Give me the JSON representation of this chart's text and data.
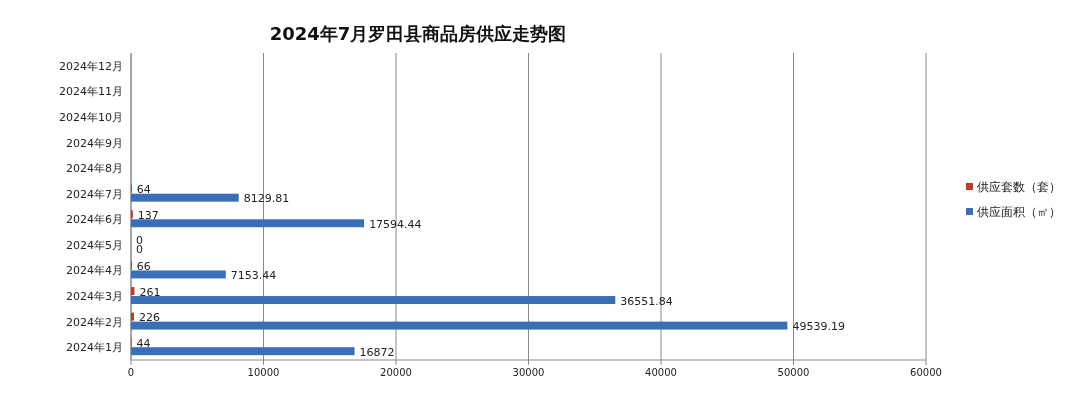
{
  "chart_data": {
    "type": "bar",
    "orientation": "horizontal",
    "title": "2024年7月罗田县商品房供应走势图",
    "categories": [
      "2024年12月",
      "2024年11月",
      "2024年10月",
      "2024年9月",
      "2024年8月",
      "2024年7月",
      "2024年6月",
      "2024年5月",
      "2024年4月",
      "2024年3月",
      "2024年2月",
      "2024年1月"
    ],
    "series": [
      {
        "name": "供应套数（套）",
        "color": "#c0392b",
        "values": [
          null,
          null,
          null,
          null,
          null,
          64,
          137,
          0,
          66,
          261,
          226,
          44
        ]
      },
      {
        "name": "供应面积（㎡）",
        "color": "#3a6fb8",
        "values": [
          null,
          null,
          null,
          null,
          null,
          8129.81,
          17594.44,
          0,
          7153.44,
          36551.84,
          49539.19,
          16872
        ]
      }
    ],
    "xlim": [
      0,
      60000
    ],
    "xticks": [
      0,
      10000,
      20000,
      30000,
      40000,
      50000,
      60000
    ],
    "grid": "x",
    "legend": "right",
    "data_labels": true
  }
}
